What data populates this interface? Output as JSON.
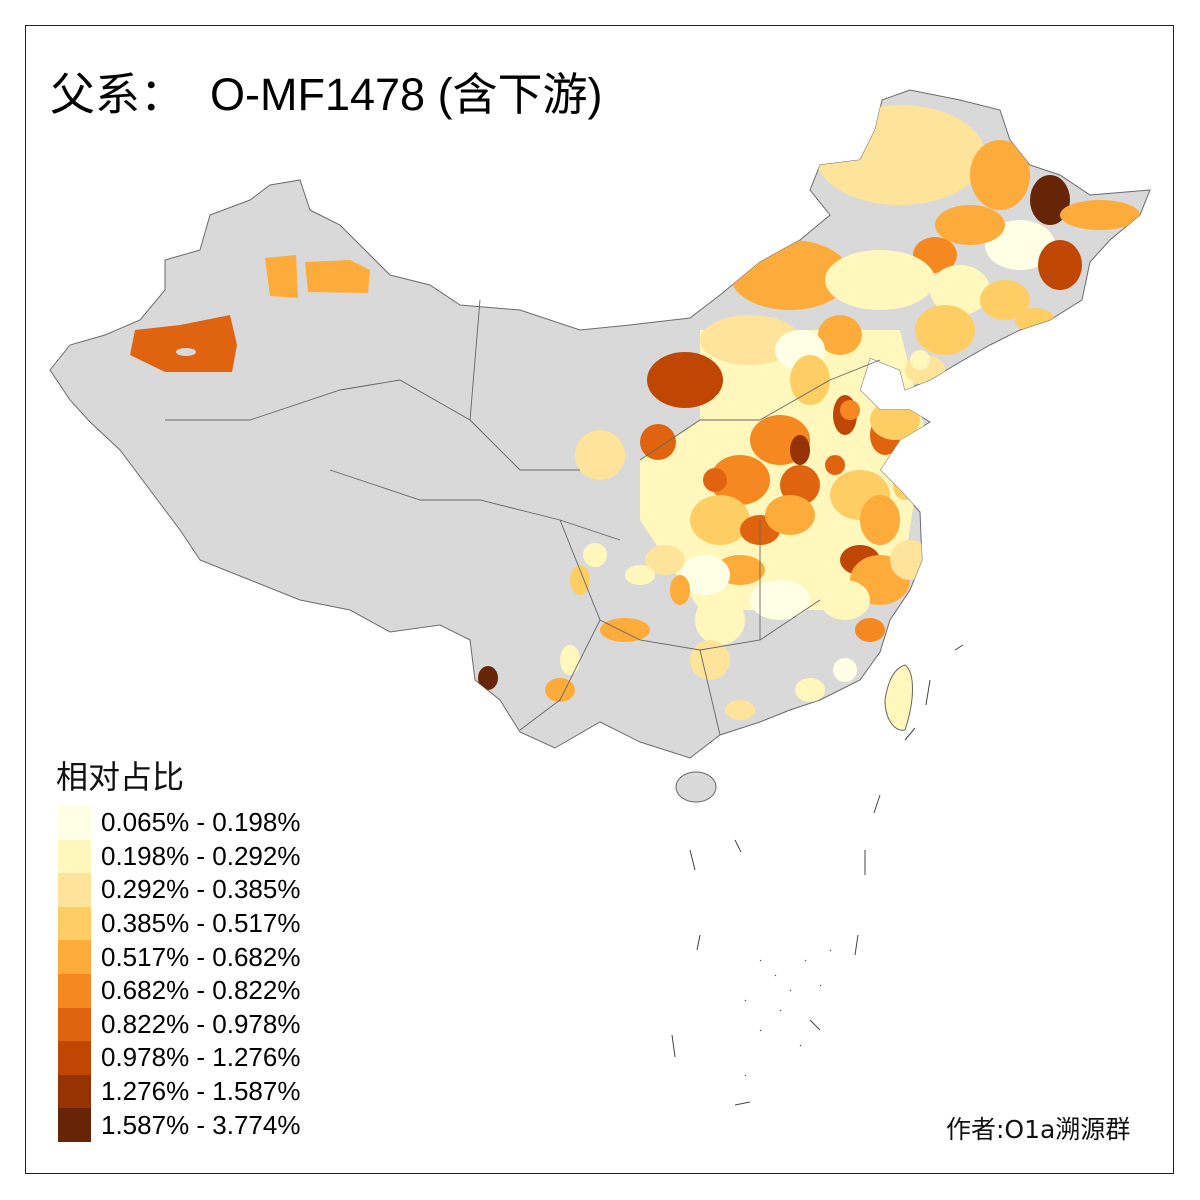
{
  "title": "父系：  O-MF1478 (含下游)",
  "legend": {
    "title": "相对占比",
    "items": [
      {
        "label": "0.065% - 0.198%",
        "color": "#FFFFE5"
      },
      {
        "label": "0.198% - 0.292%",
        "color": "#FFF7BC"
      },
      {
        "label": "0.292% - 0.385%",
        "color": "#FEE49A"
      },
      {
        "label": "0.385% - 0.517%",
        "color": "#FECE65"
      },
      {
        "label": "0.517% - 0.682%",
        "color": "#FDAB3B"
      },
      {
        "label": "0.682% - 0.822%",
        "color": "#F58820"
      },
      {
        "label": "0.822% - 0.978%",
        "color": "#E0640F"
      },
      {
        "label": "0.978% - 1.276%",
        "color": "#C04603"
      },
      {
        "label": "1.276% - 1.587%",
        "color": "#963304"
      },
      {
        "label": "1.587% - 3.774%",
        "color": "#662506"
      }
    ]
  },
  "no_data_color": "#D9D9D9",
  "credit": "作者:O1a溯源群"
}
